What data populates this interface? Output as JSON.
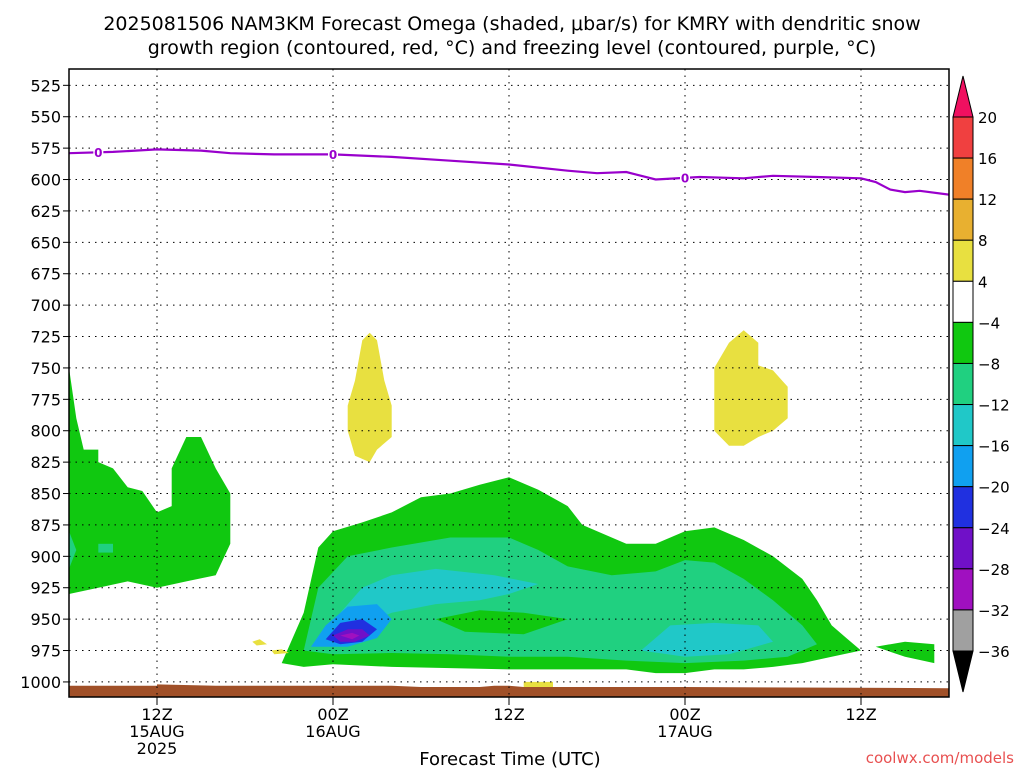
{
  "chart_data": {
    "type": "heatmap",
    "title_line1": "2025081506 NAM3KM Forecast Omega (shaded, μbar/s) for KMRY with dendritic snow",
    "title_line2": "growth region (contoured, red, °C) and freezing level (contoured, purple, °C)",
    "xlabel": "Forecast Time (UTC)",
    "credit": "coolwx.com/models",
    "x_range_hours": [
      0,
      60
    ],
    "y_range_hpa": [
      512,
      1012
    ],
    "y_ticks": [
      525,
      550,
      575,
      600,
      625,
      650,
      675,
      700,
      725,
      750,
      775,
      800,
      825,
      850,
      875,
      900,
      925,
      950,
      975,
      1000
    ],
    "y_tick_labels": [
      "525",
      "550",
      "575",
      "600",
      "625",
      "650",
      "675",
      "700",
      "725",
      "750",
      "775",
      "800",
      "825",
      "850",
      "875",
      "900",
      "925",
      "950",
      "975",
      "1000"
    ],
    "x_ticks": [
      {
        "hour": 6,
        "line1": "12Z",
        "line2": "15AUG",
        "line3": "2025"
      },
      {
        "hour": 18,
        "line1": "00Z",
        "line2": "16AUG",
        "line3": ""
      },
      {
        "hour": 30,
        "line1": "12Z",
        "line2": "",
        "line3": ""
      },
      {
        "hour": 42,
        "line1": "00Z",
        "line2": "17AUG",
        "line3": ""
      },
      {
        "hour": 54,
        "line1": "12Z",
        "line2": "",
        "line3": ""
      }
    ],
    "grid": "dotted",
    "colorbar": {
      "position": "right",
      "levels": [
        20,
        16,
        12,
        8,
        4,
        -4,
        -8,
        -12,
        -16,
        -20,
        -24,
        -28,
        -32,
        -36
      ],
      "labels": [
        "20",
        "16",
        "12",
        "8",
        "4",
        "−4",
        "−8",
        "−12",
        "−16",
        "−20",
        "−24",
        "−28",
        "−32",
        "−36"
      ],
      "colors": [
        "#f01060",
        "#f04040",
        "#f08028",
        "#e8b030",
        "#e8e040",
        "#ffffff",
        "#10c810",
        "#20d080",
        "#20c8c8",
        "#10a0f0",
        "#2030e0",
        "#7010c8",
        "#a010c0",
        "#a0a0a0",
        "#000000"
      ]
    },
    "freezing_level": {
      "label": "0",
      "color": "#9900cc",
      "label_hours": [
        2,
        18,
        42
      ],
      "points": [
        [
          0,
          579
        ],
        [
          3,
          578
        ],
        [
          6,
          576
        ],
        [
          9,
          577
        ],
        [
          11,
          579
        ],
        [
          14,
          580
        ],
        [
          18,
          580
        ],
        [
          22,
          582
        ],
        [
          26,
          585
        ],
        [
          30,
          588
        ],
        [
          34,
          593
        ],
        [
          36,
          595
        ],
        [
          38,
          594
        ],
        [
          40,
          600
        ],
        [
          43,
          598
        ],
        [
          46,
          599
        ],
        [
          48,
          597
        ],
        [
          51,
          598
        ],
        [
          54,
          599
        ],
        [
          55,
          602
        ],
        [
          56,
          608
        ],
        [
          57,
          610
        ],
        [
          58,
          609
        ],
        [
          60,
          612
        ]
      ]
    },
    "shaded_regions": [
      {
        "name": "rising-green-west",
        "color": "#10c810",
        "points": [
          [
            0,
            750
          ],
          [
            0.5,
            790
          ],
          [
            1,
            815
          ],
          [
            2,
            815
          ],
          [
            2,
            825
          ],
          [
            3,
            830
          ],
          [
            4,
            845
          ],
          [
            5,
            848
          ],
          [
            6,
            865
          ],
          [
            7,
            860
          ],
          [
            7,
            830
          ],
          [
            8,
            805
          ],
          [
            9,
            805
          ],
          [
            10,
            830
          ],
          [
            11,
            850
          ],
          [
            11,
            890
          ],
          [
            10,
            915
          ],
          [
            8,
            920
          ],
          [
            6,
            925
          ],
          [
            4,
            920
          ],
          [
            2,
            925
          ],
          [
            0,
            930
          ]
        ]
      },
      {
        "name": "rising-teal-west",
        "color": "#20d080",
        "points": [
          [
            0,
            880
          ],
          [
            0.5,
            895
          ],
          [
            0,
            910
          ]
        ]
      },
      {
        "name": "rising-teal-west-2",
        "color": "#20d080",
        "points": [
          [
            2,
            890
          ],
          [
            3,
            890
          ],
          [
            3,
            897
          ],
          [
            2,
            897
          ]
        ]
      },
      {
        "name": "rising-green-main",
        "color": "#10c810",
        "points": [
          [
            14.5,
            985
          ],
          [
            16,
            945
          ],
          [
            17,
            893
          ],
          [
            18,
            880
          ],
          [
            20,
            873
          ],
          [
            22,
            865
          ],
          [
            24,
            853
          ],
          [
            26,
            850
          ],
          [
            28,
            843
          ],
          [
            30,
            837
          ],
          [
            32,
            847
          ],
          [
            34,
            860
          ],
          [
            35,
            875
          ],
          [
            37,
            885
          ],
          [
            38,
            890
          ],
          [
            40,
            890
          ],
          [
            42,
            880
          ],
          [
            44,
            877
          ],
          [
            46,
            887
          ],
          [
            48,
            900
          ],
          [
            50,
            918
          ],
          [
            51,
            935
          ],
          [
            52,
            955
          ],
          [
            53,
            965
          ],
          [
            54,
            975
          ],
          [
            52,
            980
          ],
          [
            50,
            985
          ],
          [
            48,
            988
          ],
          [
            46,
            990
          ],
          [
            44,
            990
          ],
          [
            42,
            993
          ],
          [
            40,
            993
          ],
          [
            38,
            990
          ],
          [
            34,
            990
          ],
          [
            30,
            990
          ],
          [
            26,
            989
          ],
          [
            22,
            988
          ],
          [
            18,
            986
          ],
          [
            16,
            988
          ]
        ]
      },
      {
        "name": "rising-green-east",
        "color": "#10c810",
        "points": [
          [
            55,
            972
          ],
          [
            57,
            968
          ],
          [
            59,
            970
          ],
          [
            59,
            985
          ],
          [
            57,
            980
          ]
        ]
      },
      {
        "name": "rising-teal-main",
        "color": "#20d080",
        "points": [
          [
            16,
            975
          ],
          [
            17,
            925
          ],
          [
            19,
            900
          ],
          [
            22,
            893
          ],
          [
            26,
            885
          ],
          [
            30,
            885
          ],
          [
            32,
            895
          ],
          [
            34,
            908
          ],
          [
            37,
            915
          ],
          [
            40,
            912
          ],
          [
            42,
            903
          ],
          [
            44,
            905
          ],
          [
            46,
            918
          ],
          [
            48,
            935
          ],
          [
            50,
            955
          ],
          [
            51,
            970
          ],
          [
            49,
            980
          ],
          [
            46,
            983
          ],
          [
            42,
            985
          ],
          [
            38,
            983
          ],
          [
            34,
            980
          ],
          [
            30,
            980
          ],
          [
            26,
            978
          ],
          [
            22,
            977
          ],
          [
            18,
            978
          ]
        ]
      },
      {
        "name": "rising-green-inner",
        "color": "#10c810",
        "points": [
          [
            25,
            950
          ],
          [
            28,
            943
          ],
          [
            31,
            945
          ],
          [
            34,
            950
          ],
          [
            31,
            962
          ],
          [
            27,
            960
          ]
        ]
      },
      {
        "name": "rising-cyan-1",
        "color": "#20c8c8",
        "points": [
          [
            18,
            965
          ],
          [
            18.5,
            945
          ],
          [
            20,
            925
          ],
          [
            22,
            915
          ],
          [
            25,
            910
          ],
          [
            29,
            915
          ],
          [
            32,
            922
          ],
          [
            30,
            930
          ],
          [
            28,
            935
          ],
          [
            25,
            938
          ],
          [
            22,
            945
          ],
          [
            20,
            955
          ]
        ]
      },
      {
        "name": "rising-cyan-2",
        "color": "#20c8c8",
        "points": [
          [
            39,
            975
          ],
          [
            41,
            955
          ],
          [
            44,
            953
          ],
          [
            47,
            955
          ],
          [
            48,
            968
          ],
          [
            45,
            978
          ],
          [
            42,
            980
          ]
        ]
      },
      {
        "name": "rising-blue",
        "color": "#10a0f0",
        "points": [
          [
            16.5,
            972
          ],
          [
            17.5,
            955
          ],
          [
            19,
            940
          ],
          [
            21,
            938
          ],
          [
            22,
            950
          ],
          [
            21,
            965
          ],
          [
            19,
            972
          ]
        ]
      },
      {
        "name": "rising-darkblue",
        "color": "#2030e0",
        "points": [
          [
            17.5,
            966
          ],
          [
            18.5,
            953
          ],
          [
            20,
            950
          ],
          [
            21,
            958
          ],
          [
            20,
            968
          ],
          [
            18.5,
            970
          ]
        ]
      },
      {
        "name": "rising-purple",
        "color": "#7010c8",
        "points": [
          [
            18,
            963
          ],
          [
            19,
            958
          ],
          [
            20,
            958
          ],
          [
            20.5,
            963
          ],
          [
            19.5,
            968
          ],
          [
            18.5,
            968
          ]
        ]
      },
      {
        "name": "rising-magenta",
        "color": "#a010c0",
        "points": [
          [
            18.5,
            963
          ],
          [
            19.3,
            961
          ],
          [
            19.8,
            963
          ],
          [
            19.3,
            966
          ]
        ]
      },
      {
        "name": "sinking-yellow-1",
        "color": "#e8e040",
        "points": [
          [
            19,
            800
          ],
          [
            19,
            780
          ],
          [
            19.5,
            760
          ],
          [
            20,
            728
          ],
          [
            20.5,
            722
          ],
          [
            21,
            728
          ],
          [
            21.5,
            760
          ],
          [
            22,
            780
          ],
          [
            22,
            805
          ],
          [
            21,
            815
          ],
          [
            20.5,
            825
          ],
          [
            19.5,
            820
          ]
        ]
      },
      {
        "name": "sinking-yellow-2",
        "color": "#e8e040",
        "points": [
          [
            44,
            750
          ],
          [
            45,
            730
          ],
          [
            46,
            720
          ],
          [
            47,
            730
          ],
          [
            47,
            748
          ],
          [
            48,
            752
          ],
          [
            49,
            765
          ],
          [
            49,
            790
          ],
          [
            48,
            800
          ],
          [
            47,
            805
          ],
          [
            46,
            812
          ],
          [
            45,
            812
          ],
          [
            44,
            800
          ],
          [
            44,
            775
          ]
        ]
      },
      {
        "name": "sinking-yellow-3",
        "color": "#e8e040",
        "points": [
          [
            12.5,
            968
          ],
          [
            13,
            966
          ],
          [
            13.5,
            970
          ],
          [
            12.8,
            971
          ]
        ]
      },
      {
        "name": "sinking-yellow-4",
        "color": "#e8e040",
        "points": [
          [
            13.8,
            975
          ],
          [
            14.5,
            974
          ],
          [
            15,
            977
          ],
          [
            14,
            978
          ]
        ]
      },
      {
        "name": "sinking-yellow-5",
        "color": "#e8e040",
        "points": [
          [
            31,
            1000
          ],
          [
            33,
            1000
          ],
          [
            33,
            1004
          ],
          [
            31,
            1004
          ]
        ]
      }
    ],
    "terrain_color": "#a05028"
  }
}
